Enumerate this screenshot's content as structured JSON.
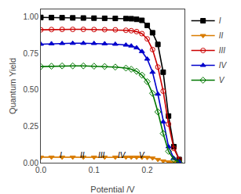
{
  "chart_data": {
    "type": "line",
    "xlabel": "Potential /V",
    "ylabel": "Quantum Yield",
    "x": [
      0.0,
      0.02,
      0.04,
      0.06,
      0.08,
      0.1,
      0.12,
      0.14,
      0.16,
      0.17,
      0.18,
      0.19,
      0.2,
      0.21,
      0.22,
      0.23,
      0.24,
      0.25,
      0.26
    ],
    "series": [
      {
        "name": "I",
        "color": "#000000",
        "marker": "square",
        "values": [
          0.995,
          0.994,
          0.993,
          0.992,
          0.991,
          0.99,
          0.989,
          0.988,
          0.987,
          0.986,
          0.982,
          0.975,
          0.94,
          0.89,
          0.81,
          0.62,
          0.32,
          0.11,
          0.022
        ]
      },
      {
        "name": "II",
        "color": "#d97c00",
        "marker": "triangle-down",
        "values": [
          0.038,
          0.038,
          0.038,
          0.038,
          0.038,
          0.038,
          0.038,
          0.038,
          0.038,
          0.038,
          0.038,
          0.037,
          0.036,
          0.032,
          0.022,
          0.012,
          0.005,
          0.002,
          0.001
        ]
      },
      {
        "name": "III",
        "color": "#cc0000",
        "marker": "circle-open",
        "values": [
          0.91,
          0.912,
          0.913,
          0.913,
          0.913,
          0.912,
          0.911,
          0.91,
          0.907,
          0.904,
          0.898,
          0.884,
          0.848,
          0.775,
          0.655,
          0.49,
          0.265,
          0.098,
          0.022
        ]
      },
      {
        "name": "IV",
        "color": "#0000cc",
        "marker": "triangle-up",
        "values": [
          0.812,
          0.815,
          0.817,
          0.818,
          0.818,
          0.817,
          0.815,
          0.812,
          0.806,
          0.8,
          0.787,
          0.762,
          0.71,
          0.62,
          0.47,
          0.28,
          0.11,
          0.03,
          0.006
        ]
      },
      {
        "name": "V",
        "color": "#007700",
        "marker": "diamond-open",
        "values": [
          0.658,
          0.661,
          0.663,
          0.663,
          0.663,
          0.661,
          0.659,
          0.655,
          0.648,
          0.64,
          0.626,
          0.6,
          0.555,
          0.475,
          0.348,
          0.2,
          0.078,
          0.022,
          0.004
        ]
      }
    ],
    "xlim": [
      0.0,
      0.27
    ],
    "ylim": [
      0.0,
      1.05
    ],
    "xticks": [
      {
        "value": 0.0,
        "label": "0.0"
      },
      0.1,
      0.2
    ],
    "yticks": [
      {
        "value": 0.0,
        "label": "0.00"
      },
      0.25,
      {
        "value": 0.5,
        "label": "0.50"
      },
      0.75,
      {
        "value": 1.0,
        "label": "1.00"
      }
    ],
    "annotations": [
      {
        "text": "I",
        "x": 0.038,
        "y": 0.09
      },
      {
        "text": "II",
        "x": 0.078,
        "y": 0.09
      },
      {
        "text": "III",
        "x": 0.115,
        "y": 0.09
      },
      {
        "text": "IV",
        "x": 0.152,
        "y": 0.09
      },
      {
        "text": "V",
        "x": 0.19,
        "y": 0.09
      }
    ],
    "legend": "upper right",
    "grid": false
  }
}
